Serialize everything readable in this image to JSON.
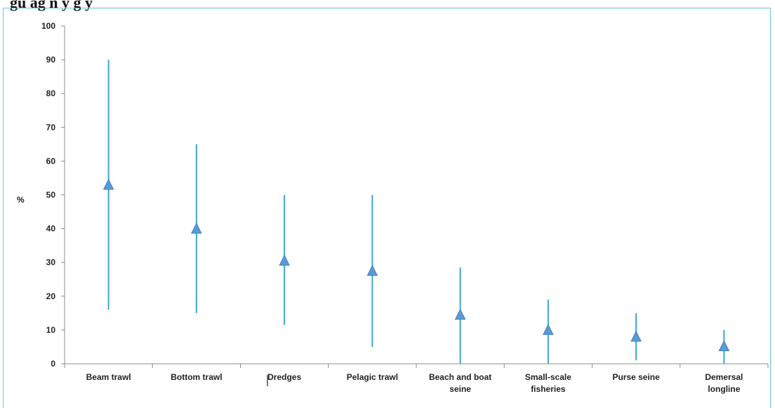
{
  "figure": {
    "title_fragment": "gu    ag   n                 y    g     y"
  },
  "colors": {
    "line": "#3fa6d3",
    "marker": "#5b9bd5",
    "marker_stroke": "#3a7fbf",
    "axis": "#8c8c8c"
  },
  "chart_data": {
    "type": "range",
    "ylabel": "%",
    "ylim": [
      0,
      100
    ],
    "yticks": [
      0,
      10,
      20,
      30,
      40,
      50,
      60,
      70,
      80,
      90,
      100
    ],
    "categories": [
      [
        "Beam trawl"
      ],
      [
        "Bottom trawl"
      ],
      [
        "Dredges"
      ],
      [
        "Pelagic trawl"
      ],
      [
        "Beach and boat",
        "seine"
      ],
      [
        "Small-scale",
        "fisheries"
      ],
      [
        "Purse seine"
      ],
      [
        "Demersal",
        "longline"
      ]
    ],
    "series": [
      {
        "values": [
          53,
          40,
          30.5,
          27.5,
          14.5,
          10,
          8,
          5.2
        ]
      }
    ],
    "min": [
      16,
      15,
      11.5,
      5,
      0,
      0,
      1,
      0
    ],
    "max": [
      90,
      65,
      50,
      50,
      28.5,
      19,
      15,
      10
    ],
    "marker": "triangle",
    "grid": false
  }
}
